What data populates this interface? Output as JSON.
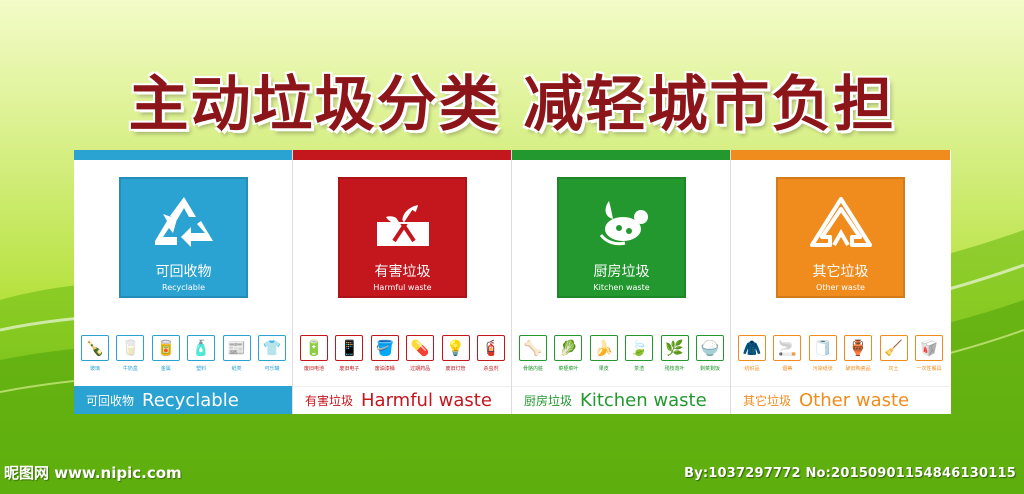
{
  "title": "主动垃圾分类 减轻城市负担",
  "bins": [
    {
      "cn": "可回收物",
      "en": "Recyclable",
      "band_cn": "可回收物",
      "band_en": "Recyclable",
      "icon": "recycle-icon",
      "color": "#2aa2d2",
      "band_color": "#2aa2d2",
      "band_text_color": "#ffffff",
      "items": [
        {
          "label": "玻璃",
          "icon": "glass-bottle-icon",
          "glyph": "🍾"
        },
        {
          "label": "牛奶盒",
          "icon": "milk-carton-icon",
          "glyph": "🥛"
        },
        {
          "label": "金属",
          "icon": "metal-can-icon",
          "glyph": "🥫"
        },
        {
          "label": "塑料",
          "icon": "plastic-bottle-icon",
          "glyph": "🧴"
        },
        {
          "label": "纸类",
          "icon": "paper-stack-icon",
          "glyph": "📰"
        },
        {
          "label": "可乐罐",
          "icon": "cloth-icon",
          "glyph": "👕"
        }
      ]
    },
    {
      "cn": "有害垃圾",
      "en": "Harmful waste",
      "band_cn": "有害垃圾",
      "band_en": "Harmful waste",
      "icon": "harmful-plant-icon",
      "color": "#c4161d",
      "band_color": "#ffffff",
      "band_text_color": "#c4161d",
      "items": [
        {
          "label": "废旧电池",
          "icon": "battery-icon",
          "glyph": "🔋"
        },
        {
          "label": "废旧电子",
          "icon": "phone-icon",
          "glyph": "📱"
        },
        {
          "label": "废油漆桶",
          "icon": "paint-bucket-icon",
          "glyph": "🪣"
        },
        {
          "label": "过期药品",
          "icon": "medicine-icon",
          "glyph": "💊"
        },
        {
          "label": "废旧灯管",
          "icon": "lamp-icon",
          "glyph": "💡"
        },
        {
          "label": "杀虫剂",
          "icon": "spray-icon",
          "glyph": "🧯"
        }
      ]
    },
    {
      "cn": "厨房垃圾",
      "en": "Kitchen waste",
      "band_cn": "厨房垃圾",
      "band_en": "Kitchen waste",
      "icon": "kitchen-food-icon",
      "color": "#23982f",
      "band_color": "#ffffff",
      "band_text_color": "#23982f",
      "items": [
        {
          "label": "骨骼内脏",
          "icon": "bone-icon",
          "glyph": "🦴"
        },
        {
          "label": "菜梗菜叶",
          "icon": "vegetable-icon",
          "glyph": "🥬"
        },
        {
          "label": "果皮",
          "icon": "fruit-peel-icon",
          "glyph": "🍌"
        },
        {
          "label": "茶渣",
          "icon": "tea-leaf-icon",
          "glyph": "🍃"
        },
        {
          "label": "残枝落叶",
          "icon": "plant-icon",
          "glyph": "🌿"
        },
        {
          "label": "剩菜剩饭",
          "icon": "rice-bowl-icon",
          "glyph": "🍚"
        }
      ]
    },
    {
      "cn": "其它垃圾",
      "en": "Other waste",
      "band_cn": "其它垃圾",
      "band_en": "Other waste",
      "icon": "other-triangle-icon",
      "color": "#f08c1e",
      "band_color": "#ffffff",
      "band_text_color": "#f08c1e",
      "items": [
        {
          "label": "纺织品",
          "icon": "coat-icon",
          "glyph": "🧥"
        },
        {
          "label": "烟蒂",
          "icon": "cigarette-icon",
          "glyph": "🚬"
        },
        {
          "label": "污染纸张",
          "icon": "tissue-icon",
          "glyph": "🧻"
        },
        {
          "label": "破旧陶瓷品",
          "icon": "ceramic-icon",
          "glyph": "🏺"
        },
        {
          "label": "灰土",
          "icon": "dustpan-icon",
          "glyph": "🧹"
        },
        {
          "label": "一次性餐具",
          "icon": "tableware-icon",
          "glyph": "🥡"
        }
      ]
    }
  ],
  "watermark_left": "昵图网 www.nipic.com",
  "watermark_right": "By:1037297772 No:20150901154846130115"
}
